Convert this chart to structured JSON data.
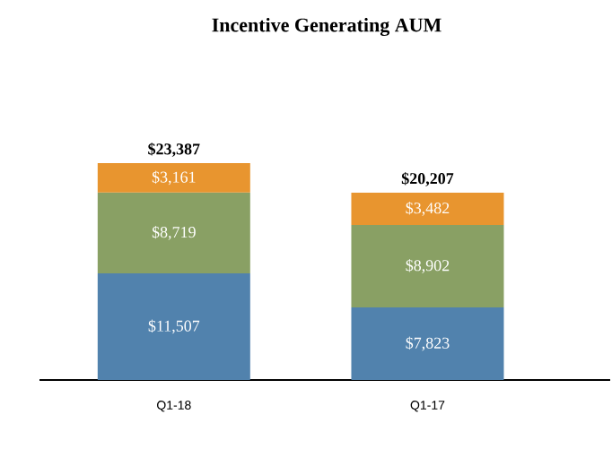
{
  "chart_data": {
    "type": "bar",
    "title": "Incentive Generating AUM",
    "stacked": true,
    "data_labels": true,
    "categories": [
      "Q1-18",
      "Q1-17"
    ],
    "series": [
      {
        "color": "#5182ad",
        "values": [
          11507,
          7823
        ],
        "value_labels": [
          "$11,507",
          "$7,823"
        ]
      },
      {
        "color": "#89a064",
        "values": [
          8719,
          8902
        ],
        "value_labels": [
          "$8,719",
          "$8,902"
        ]
      },
      {
        "color": "#e8952f",
        "values": [
          3161,
          3482
        ],
        "value_labels": [
          "$3,161",
          "$3,482"
        ]
      }
    ],
    "totals": [
      "$23,387",
      "$20,207"
    ]
  }
}
